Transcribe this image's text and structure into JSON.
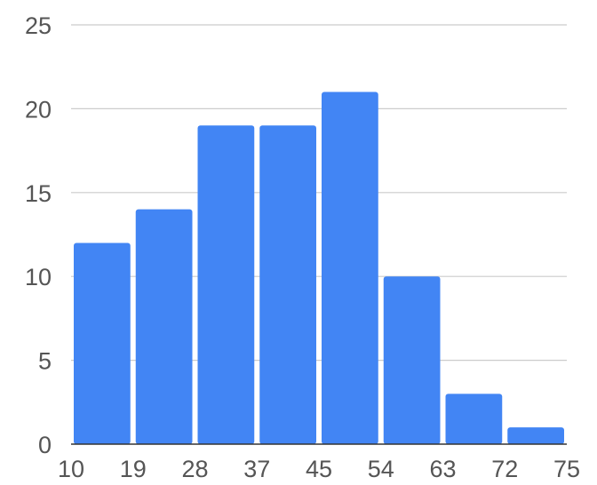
{
  "chart_data": {
    "type": "bar",
    "title": "",
    "xlabel": "",
    "ylabel": "",
    "bin_edges": [
      10,
      19,
      28,
      37,
      45,
      54,
      63,
      72,
      75
    ],
    "x_tick_labels": [
      "10",
      "19",
      "28",
      "37",
      "45",
      "54",
      "63",
      "72",
      "75"
    ],
    "values": [
      12,
      14,
      19,
      19,
      21,
      10,
      3,
      1
    ],
    "ylim": [
      0,
      25
    ],
    "y_ticks": [
      0,
      5,
      10,
      15,
      20,
      25
    ],
    "y_tick_labels": [
      "0",
      "5",
      "10",
      "15",
      "20",
      "25"
    ],
    "grid": true,
    "legend": "none",
    "colors": {
      "bar": "#4285F4",
      "grid": "#CCCCCC",
      "baseline": "#333333",
      "tick_text": "#555555"
    }
  }
}
